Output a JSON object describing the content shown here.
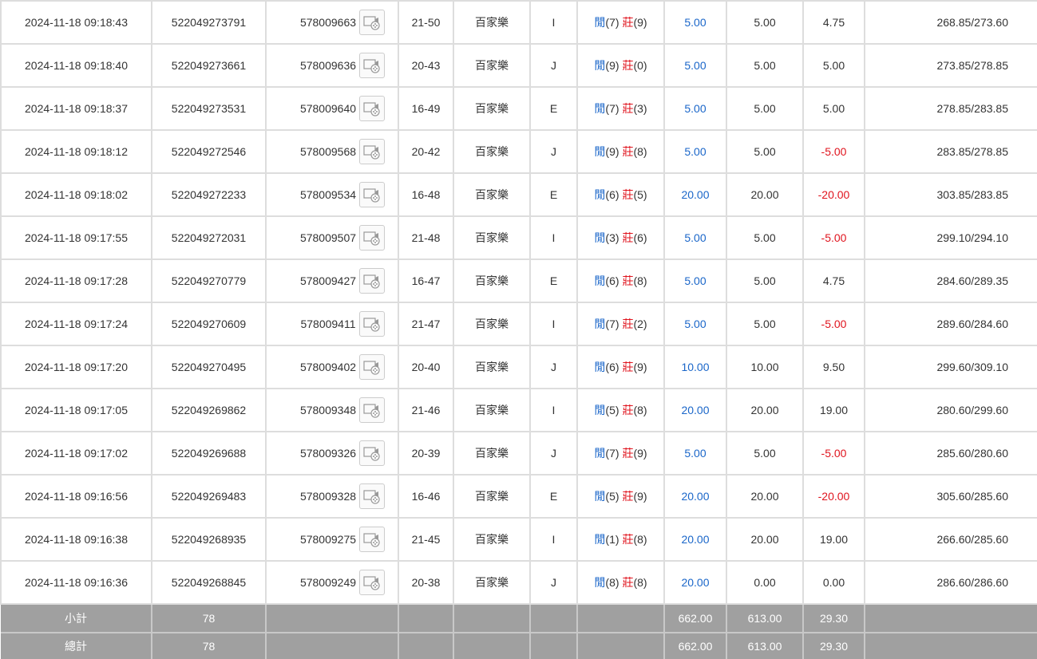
{
  "table": {
    "rows": [
      [
        "2024-11-18 09:18:43",
        "522049273791",
        "578009663",
        "21-50",
        "百家樂",
        "I",
        [
          "閒",
          "(7)",
          "莊",
          "(9)"
        ],
        "5.00",
        "5.00",
        "4.75",
        "268.85/273.60"
      ],
      [
        "2024-11-18 09:18:40",
        "522049273661",
        "578009636",
        "20-43",
        "百家樂",
        "J",
        [
          "閒",
          "(9)",
          "莊",
          "(0)"
        ],
        "5.00",
        "5.00",
        "5.00",
        "273.85/278.85"
      ],
      [
        "2024-11-18 09:18:37",
        "522049273531",
        "578009640",
        "16-49",
        "百家樂",
        "E",
        [
          "閒",
          "(7)",
          "莊",
          "(3)"
        ],
        "5.00",
        "5.00",
        "5.00",
        "278.85/283.85"
      ],
      [
        "2024-11-18 09:18:12",
        "522049272546",
        "578009568",
        "20-42",
        "百家樂",
        "J",
        [
          "閒",
          "(9)",
          "莊",
          "(8)"
        ],
        "5.00",
        "5.00",
        "-5.00",
        "283.85/278.85"
      ],
      [
        "2024-11-18 09:18:02",
        "522049272233",
        "578009534",
        "16-48",
        "百家樂",
        "E",
        [
          "閒",
          "(6)",
          "莊",
          "(5)"
        ],
        "20.00",
        "20.00",
        "-20.00",
        "303.85/283.85"
      ],
      [
        "2024-11-18 09:17:55",
        "522049272031",
        "578009507",
        "21-48",
        "百家樂",
        "I",
        [
          "閒",
          "(3)",
          "莊",
          "(6)"
        ],
        "5.00",
        "5.00",
        "-5.00",
        "299.10/294.10"
      ],
      [
        "2024-11-18 09:17:28",
        "522049270779",
        "578009427",
        "16-47",
        "百家樂",
        "E",
        [
          "閒",
          "(6)",
          "莊",
          "(8)"
        ],
        "5.00",
        "5.00",
        "4.75",
        "284.60/289.35"
      ],
      [
        "2024-11-18 09:17:24",
        "522049270609",
        "578009411",
        "21-47",
        "百家樂",
        "I",
        [
          "閒",
          "(7)",
          "莊",
          "(2)"
        ],
        "5.00",
        "5.00",
        "-5.00",
        "289.60/284.60"
      ],
      [
        "2024-11-18 09:17:20",
        "522049270495",
        "578009402",
        "20-40",
        "百家樂",
        "J",
        [
          "閒",
          "(6)",
          "莊",
          "(9)"
        ],
        "10.00",
        "10.00",
        "9.50",
        "299.60/309.10"
      ],
      [
        "2024-11-18 09:17:05",
        "522049269862",
        "578009348",
        "21-46",
        "百家樂",
        "I",
        [
          "閒",
          "(5)",
          "莊",
          "(8)"
        ],
        "20.00",
        "20.00",
        "19.00",
        "280.60/299.60"
      ],
      [
        "2024-11-18 09:17:02",
        "522049269688",
        "578009326",
        "20-39",
        "百家樂",
        "J",
        [
          "閒",
          "(7)",
          "莊",
          "(9)"
        ],
        "5.00",
        "5.00",
        "-5.00",
        "285.60/280.60"
      ],
      [
        "2024-11-18 09:16:56",
        "522049269483",
        "578009328",
        "16-46",
        "百家樂",
        "E",
        [
          "閒",
          "(5)",
          "莊",
          "(9)"
        ],
        "20.00",
        "20.00",
        "-20.00",
        "305.60/285.60"
      ],
      [
        "2024-11-18 09:16:38",
        "522049268935",
        "578009275",
        "21-45",
        "百家樂",
        "I",
        [
          "閒",
          "(1)",
          "莊",
          "(8)"
        ],
        "20.00",
        "20.00",
        "19.00",
        "266.60/285.60"
      ],
      [
        "2024-11-18 09:16:36",
        "522049268845",
        "578009249",
        "20-38",
        "百家樂",
        "J",
        [
          "閒",
          "(8)",
          "莊",
          "(8)"
        ],
        "20.00",
        "0.00",
        "0.00",
        "286.60/286.60"
      ]
    ],
    "subtotal": {
      "label": "小計",
      "count": "78",
      "bet": "662.00",
      "valid": "613.00",
      "winloss": "29.30"
    },
    "total": {
      "label": "總計",
      "count": "78",
      "bet": "662.00",
      "valid": "613.00",
      "winloss": "29.30"
    }
  }
}
